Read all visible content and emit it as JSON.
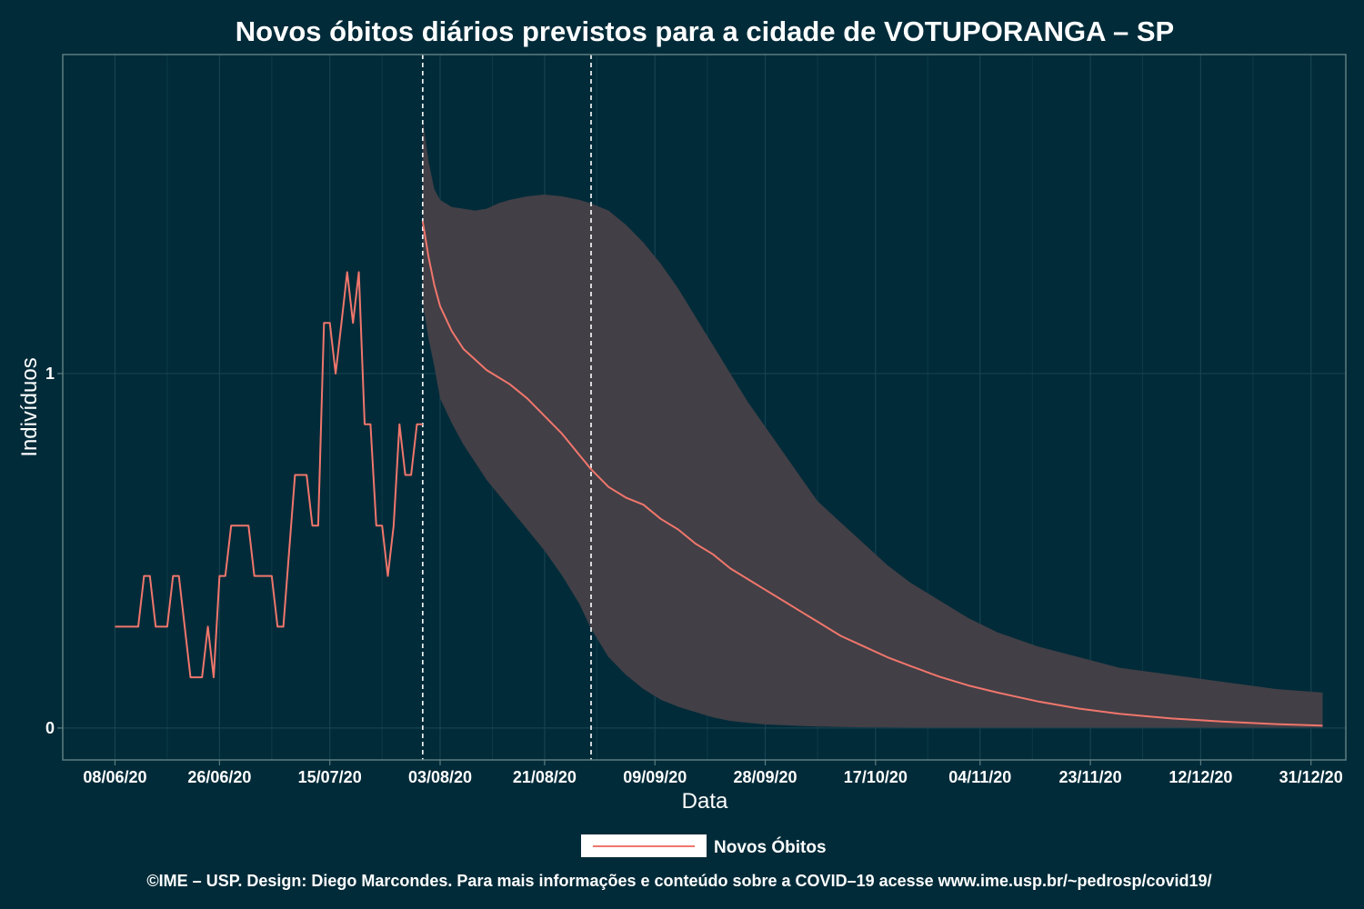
{
  "chart_data": {
    "type": "line",
    "title": "Novos óbitos diários previstos para a cidade de VOTUPORANGA – SP",
    "xlabel": "Data",
    "ylabel": "Indivíduos",
    "x_ticks": [
      "08/06/20",
      "26/06/20",
      "15/07/20",
      "03/08/20",
      "21/08/20",
      "09/09/20",
      "28/09/20",
      "17/10/20",
      "04/11/20",
      "23/11/20",
      "12/12/20",
      "31/12/20"
    ],
    "y_ticks": [
      "0",
      "1"
    ],
    "ylim": [
      -0.09,
      1.9
    ],
    "xlim": [
      "2020-05-30",
      "2021-01-06"
    ],
    "grid": true,
    "legend_position": "bottom",
    "vertical_lines": [
      "2020-07-31",
      "2020-08-29"
    ],
    "colors": {
      "line": "#f0766c",
      "band": "#423f46",
      "background": "#012b39",
      "panel_border": "#5d7e80"
    },
    "observed": {
      "name": "Novos Óbitos",
      "x": [
        "2020-06-08",
        "2020-06-12",
        "2020-06-13",
        "2020-06-14",
        "2020-06-15",
        "2020-06-17",
        "2020-06-18",
        "2020-06-19",
        "2020-06-20",
        "2020-06-21",
        "2020-06-22",
        "2020-06-23",
        "2020-06-24",
        "2020-06-25",
        "2020-06-26",
        "2020-06-27",
        "2020-06-28",
        "2020-06-29",
        "2020-07-01",
        "2020-07-02",
        "2020-07-04",
        "2020-07-05",
        "2020-07-06",
        "2020-07-07",
        "2020-07-09",
        "2020-07-10",
        "2020-07-11",
        "2020-07-12",
        "2020-07-13",
        "2020-07-14",
        "2020-07-15",
        "2020-07-16",
        "2020-07-17",
        "2020-07-18",
        "2020-07-19",
        "2020-07-20",
        "2020-07-21",
        "2020-07-22",
        "2020-07-23",
        "2020-07-24",
        "2020-07-25",
        "2020-07-26",
        "2020-07-27",
        "2020-07-28",
        "2020-07-29",
        "2020-07-30",
        "2020-07-31"
      ],
      "y": [
        0.286,
        0.286,
        0.429,
        0.429,
        0.286,
        0.286,
        0.429,
        0.429,
        0.286,
        0.143,
        0.143,
        0.143,
        0.286,
        0.143,
        0.429,
        0.429,
        0.571,
        0.571,
        0.571,
        0.429,
        0.429,
        0.429,
        0.286,
        0.286,
        0.714,
        0.714,
        0.714,
        0.571,
        0.571,
        1.143,
        1.143,
        1.0,
        1.143,
        1.286,
        1.143,
        1.286,
        0.857,
        0.857,
        0.571,
        0.571,
        0.429,
        0.571,
        0.857,
        0.714,
        0.714,
        0.857,
        0.857
      ]
    },
    "forecast": {
      "name": "Novos Óbitos",
      "x": [
        "2020-07-31",
        "2020-08-01",
        "2020-08-02",
        "2020-08-03",
        "2020-08-05",
        "2020-08-07",
        "2020-08-09",
        "2020-08-11",
        "2020-08-13",
        "2020-08-15",
        "2020-08-18",
        "2020-08-21",
        "2020-08-24",
        "2020-08-27",
        "2020-08-29",
        "2020-09-01",
        "2020-09-04",
        "2020-09-07",
        "2020-09-10",
        "2020-09-13",
        "2020-09-16",
        "2020-09-19",
        "2020-09-22",
        "2020-09-25",
        "2020-09-28",
        "2020-10-01",
        "2020-10-04",
        "2020-10-07",
        "2020-10-11",
        "2020-10-15",
        "2020-10-19",
        "2020-10-23",
        "2020-10-28",
        "2020-11-02",
        "2020-11-07",
        "2020-11-14",
        "2020-11-21",
        "2020-11-28",
        "2020-12-07",
        "2020-12-16",
        "2020-12-25",
        "2021-01-02"
      ],
      "y": [
        1.43,
        1.33,
        1.25,
        1.19,
        1.12,
        1.07,
        1.04,
        1.01,
        0.99,
        0.97,
        0.93,
        0.88,
        0.83,
        0.77,
        0.73,
        0.68,
        0.65,
        0.63,
        0.59,
        0.56,
        0.52,
        0.49,
        0.45,
        0.42,
        0.39,
        0.36,
        0.33,
        0.3,
        0.26,
        0.23,
        0.2,
        0.175,
        0.145,
        0.12,
        0.1,
        0.075,
        0.055,
        0.04,
        0.027,
        0.018,
        0.011,
        0.007
      ],
      "lower": [
        1.2,
        1.1,
        1.02,
        0.93,
        0.86,
        0.8,
        0.75,
        0.7,
        0.66,
        0.62,
        0.56,
        0.5,
        0.43,
        0.35,
        0.28,
        0.2,
        0.15,
        0.11,
        0.08,
        0.06,
        0.045,
        0.03,
        0.02,
        0.015,
        0.01,
        0.008,
        0.006,
        0.004,
        0.003,
        0.002,
        0.002,
        0.001,
        0.001,
        0.001,
        0.001,
        0.001,
        0.001,
        0.001,
        0.001,
        0.001,
        0.001,
        0.001
      ],
      "upper": [
        1.72,
        1.6,
        1.52,
        1.49,
        1.47,
        1.465,
        1.46,
        1.465,
        1.48,
        1.49,
        1.5,
        1.505,
        1.5,
        1.49,
        1.48,
        1.46,
        1.42,
        1.37,
        1.31,
        1.24,
        1.16,
        1.08,
        1.0,
        0.92,
        0.85,
        0.78,
        0.71,
        0.64,
        0.58,
        0.52,
        0.46,
        0.41,
        0.36,
        0.31,
        0.27,
        0.23,
        0.2,
        0.17,
        0.15,
        0.13,
        0.11,
        0.1
      ]
    }
  },
  "legend": {
    "label": "Novos Óbitos"
  },
  "caption": "©IME – USP. Design: Diego Marcondes. Para mais informações e conteúdo sobre a COVID–19 acesse www.ime.usp.br/~pedrosp/covid19/"
}
